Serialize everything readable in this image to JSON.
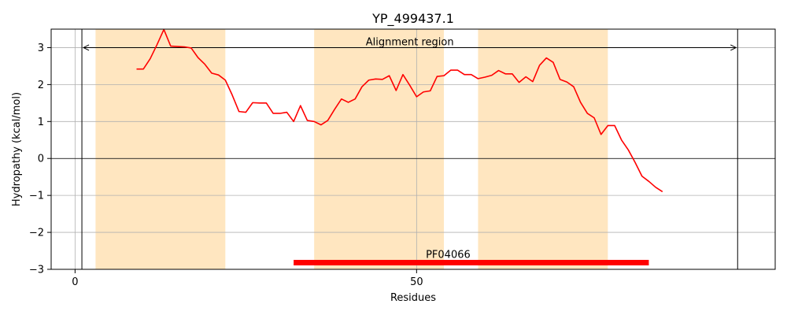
{
  "chart_data": {
    "type": "line",
    "title": "YP_499437.1",
    "xlabel": "Residues",
    "ylabel": "Hydropathy (kcal/mol)",
    "xlim": [
      -3.5,
      102.5
    ],
    "ylim": [
      -3,
      3.5
    ],
    "xticks": [
      0,
      50
    ],
    "yticks": [
      -3,
      -2,
      -1,
      0,
      1,
      2,
      3
    ],
    "ytick_labels": [
      "−3",
      "−2",
      "−1",
      "0",
      "1",
      "2",
      "3"
    ],
    "grid": true,
    "shaded_regions": [
      {
        "start": 3,
        "end": 22,
        "color": "#ffe6c0"
      },
      {
        "start": 35,
        "end": 54,
        "color": "#ffe6c0"
      },
      {
        "start": 59,
        "end": 78,
        "color": "#ffe6c0"
      }
    ],
    "vertical_lines": [
      1,
      97
    ],
    "alignment": {
      "label": "Alignment region",
      "start": 1,
      "end": 97,
      "y": 3
    },
    "domain_bar": {
      "label": "PF04066",
      "start": 32,
      "end": 84,
      "y": -2.82,
      "color": "#ff0000"
    },
    "series": [
      {
        "color": "#ff0000",
        "x": [
          9,
          10,
          11,
          12,
          13,
          14,
          15,
          16,
          17,
          18,
          19,
          20,
          21,
          22,
          23,
          24,
          25,
          26,
          27,
          28,
          29,
          30,
          31,
          32,
          33,
          34,
          35,
          36,
          37,
          38,
          39,
          40,
          41,
          42,
          43,
          44,
          45,
          46,
          47,
          48,
          49,
          50,
          51,
          52,
          53,
          54,
          55,
          56,
          57,
          58,
          59,
          60,
          61,
          62,
          63,
          64,
          65,
          66,
          67,
          68,
          69,
          70,
          71,
          72,
          73,
          74,
          75,
          76,
          77,
          78,
          79,
          80,
          81,
          82,
          83,
          84,
          85,
          86
        ],
        "y": [
          2.42,
          2.42,
          2.7,
          3.08,
          3.49,
          3.04,
          3.03,
          3.02,
          2.99,
          2.73,
          2.55,
          2.31,
          2.26,
          2.12,
          1.72,
          1.27,
          1.25,
          1.51,
          1.5,
          1.5,
          1.22,
          1.22,
          1.25,
          1.0,
          1.43,
          1.03,
          1.0,
          0.91,
          1.03,
          1.33,
          1.61,
          1.52,
          1.61,
          1.94,
          2.12,
          2.15,
          2.14,
          2.24,
          1.84,
          2.27,
          1.98,
          1.67,
          1.8,
          1.83,
          2.22,
          2.24,
          2.39,
          2.39,
          2.27,
          2.27,
          2.16,
          2.2,
          2.25,
          2.38,
          2.29,
          2.29,
          2.06,
          2.21,
          2.08,
          2.52,
          2.72,
          2.6,
          2.14,
          2.07,
          1.94,
          1.52,
          1.22,
          1.1,
          0.65,
          0.89,
          0.89,
          0.5,
          0.23,
          -0.11,
          -0.48,
          -0.62,
          -0.78,
          -0.9
        ]
      }
    ]
  }
}
